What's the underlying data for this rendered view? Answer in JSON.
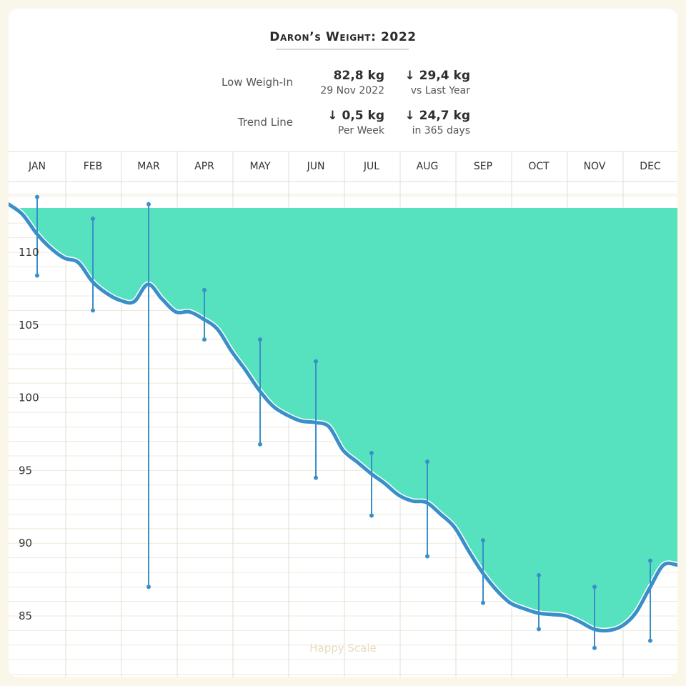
{
  "title": "Daron’s Weight: 2022",
  "stats": {
    "low_label": "Low Weigh-In",
    "low_value": "82,8 kg",
    "low_date": "29 Nov 2022",
    "change_value": "↓ 29,4 kg",
    "change_sub": "vs Last Year",
    "trend_label": "Trend Line",
    "trend_value": "↓ 0,5 kg",
    "trend_sub": "Per Week",
    "trend_change_value": "↓ 24,7 kg",
    "trend_change_sub": "in 365 days"
  },
  "watermark": "Happy Scale",
  "colors": {
    "fill": "#56e2bf",
    "line": "#3a8fc9",
    "range": "#3a8fc9",
    "grid": "#ece9dc",
    "grid_major": "#e2ded0",
    "background": "#fbf6ea"
  },
  "chart_data": {
    "type": "area",
    "title": "Daron’s Weight: 2022",
    "x_categories": [
      "JAN",
      "FEB",
      "MAR",
      "APR",
      "MAY",
      "JUN",
      "JUL",
      "AUG",
      "SEP",
      "OCT",
      "NOV",
      "DEC"
    ],
    "y_ticks": [
      85,
      90,
      95,
      100,
      105,
      110
    ],
    "y_range": [
      81,
      114
    ],
    "grid": true,
    "series": [
      {
        "type": "line",
        "x": [
          0.0,
          0.25,
          0.5,
          0.75,
          1.0,
          1.25,
          1.5,
          1.75,
          2.0,
          2.25,
          2.5,
          2.75,
          3.0,
          3.25,
          3.5,
          3.75,
          4.0,
          4.25,
          4.5,
          4.75,
          5.0,
          5.25,
          5.5,
          5.75,
          6.0,
          6.25,
          6.5,
          6.75,
          7.0,
          7.25,
          7.5,
          7.75,
          8.0,
          8.25,
          8.5,
          8.75,
          9.0,
          9.25,
          9.5,
          9.75,
          10.0,
          10.25,
          10.5,
          10.75,
          11.0,
          11.25,
          11.5,
          11.75,
          12.0
        ],
        "values": [
          113.3,
          112.6,
          111.3,
          110.3,
          109.6,
          109.3,
          108.0,
          107.2,
          106.7,
          106.6,
          107.8,
          106.8,
          105.9,
          105.9,
          105.4,
          104.7,
          103.2,
          101.9,
          100.5,
          99.4,
          98.8,
          98.4,
          98.3,
          98.0,
          96.4,
          95.6,
          94.8,
          94.1,
          93.3,
          92.9,
          92.8,
          92.0,
          91.1,
          89.5,
          88.0,
          86.8,
          85.9,
          85.5,
          85.2,
          85.1,
          85.0,
          84.6,
          84.1,
          84.0,
          84.3,
          85.2,
          86.9,
          88.5,
          88.5
        ]
      }
    ],
    "ranges": [
      {
        "month": "JAN",
        "high": 113.8,
        "low": 108.4
      },
      {
        "month": "FEB",
        "high": 112.3,
        "low": 106.0
      },
      {
        "month": "MAR",
        "high": 113.3,
        "low": 87.0
      },
      {
        "month": "APR",
        "high": 107.4,
        "low": 104.0
      },
      {
        "month": "MAY",
        "high": 104.0,
        "low": 96.8
      },
      {
        "month": "JUN",
        "high": 102.5,
        "low": 94.5
      },
      {
        "month": "JUL",
        "high": 96.2,
        "low": 91.9
      },
      {
        "month": "AUG",
        "high": 95.6,
        "low": 89.1
      },
      {
        "month": "SEP",
        "high": 90.2,
        "low": 85.9
      },
      {
        "month": "OCT",
        "high": 87.8,
        "low": 84.1
      },
      {
        "month": "NOV",
        "high": 87.0,
        "low": 82.8
      },
      {
        "month": "DEC",
        "high": 88.8,
        "low": 83.3
      }
    ]
  }
}
